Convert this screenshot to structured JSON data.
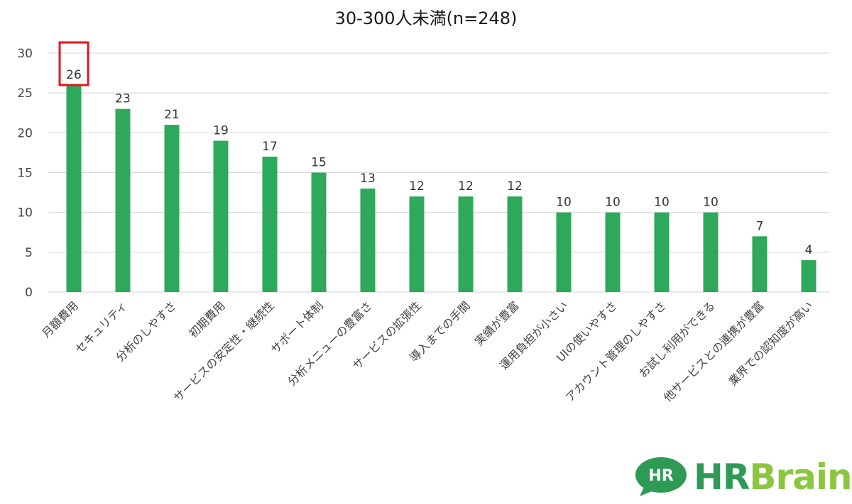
{
  "chart_data": {
    "type": "bar",
    "title": "30-300人未満(n=248)",
    "categories": [
      "月額費用",
      "セキュリティ",
      "分析のしやすさ",
      "初期費用",
      "サービスの安定性・継続性",
      "サポート体制",
      "分析メニューの豊富さ",
      "サービスの拡張性",
      "導入までの手間",
      "実績が豊富",
      "運用負担が小さい",
      "UIの使いやすさ",
      "アカウント管理のしやすさ",
      "お試し利用ができる",
      "他サービスとの連携が豊富",
      "業界での認知度が高い"
    ],
    "values": [
      26,
      23,
      21,
      19,
      17,
      15,
      13,
      12,
      12,
      12,
      10,
      10,
      10,
      10,
      7,
      4
    ],
    "ylim": [
      0,
      30
    ],
    "yticks": [
      0,
      5,
      10,
      15,
      20,
      25,
      30
    ],
    "xlabel": "",
    "ylabel": "",
    "grid": true,
    "legend": "none",
    "highlighted_category": "月額費用",
    "bar_color": "#2ea85a",
    "highlight_color": "#e8141c"
  },
  "logo": {
    "bubble_text": "HR",
    "text_hr": "HR",
    "text_brain": "Brain",
    "color_primary": "#2e9a55",
    "color_secondary": "#8cc63f"
  }
}
